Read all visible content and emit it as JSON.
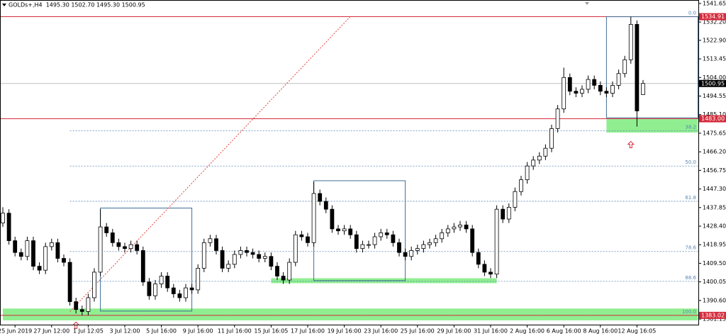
{
  "chart_data": {
    "type": "candlestick",
    "legend_text": "GOLDs+,H4  1495.30 1502.70 1495.30 1500.95",
    "categories": [
      null,
      null,
      "25 Jun 2019",
      null,
      null,
      null,
      null,
      null,
      "27 Jun 12:00",
      null,
      null,
      null,
      null,
      null,
      "1 Jul 12:05",
      null,
      null,
      null,
      null,
      null,
      "3 Jul 12:00",
      null,
      null,
      null,
      null,
      null,
      "5 Jul 16:00",
      null,
      null,
      null,
      null,
      null,
      "9 Jul 16:00",
      null,
      null,
      null,
      null,
      null,
      "11 Jul 16:00",
      null,
      null,
      null,
      null,
      null,
      "15 Jul 16:05",
      null,
      null,
      null,
      null,
      null,
      "17 Jul 16:00",
      null,
      null,
      null,
      null,
      null,
      "19 Jul 16:00",
      null,
      null,
      null,
      null,
      null,
      "23 Jul 16:00",
      null,
      null,
      null,
      null,
      null,
      "25 Jul 16:00",
      null,
      null,
      null,
      null,
      null,
      "29 Jul 16:00",
      null,
      null,
      null,
      null,
      null,
      "31 Jul 16:00",
      null,
      null,
      null,
      null,
      null,
      "2 Aug 16:00",
      null,
      null,
      null,
      null,
      null,
      "6 Aug 16:00",
      null,
      null,
      null,
      null,
      null,
      "8 Aug 16:00",
      null,
      null,
      null,
      null,
      null,
      "12 Aug 16:05",
      null
    ],
    "open": [
      1430,
      1435,
      1421,
      1415,
      1413,
      1421,
      1408,
      1406,
      1418,
      1420,
      1412,
      1410,
      1390,
      1386,
      1385,
      1392,
      1405,
      1428,
      1425,
      1420,
      1418,
      1417,
      1419,
      1416,
      1400,
      1393,
      1399,
      1403,
      1397,
      1394,
      1392,
      1397,
      1396,
      1407,
      1420,
      1422,
      1416,
      1407,
      1409,
      1414,
      1416,
      1415,
      1414,
      1412,
      1413,
      1408,
      1403,
      1401,
      1410,
      1424,
      1423,
      1420,
      1445,
      1441,
      1437,
      1427,
      1426,
      1427,
      1424,
      1417,
      1419,
      1419,
      1423,
      1425,
      1424,
      1420,
      1415,
      1413,
      1416,
      1417,
      1419,
      1420,
      1422,
      1425,
      1427,
      1428,
      1429,
      1427,
      1415,
      1409,
      1405,
      1404,
      1437,
      1432,
      1438,
      1446,
      1452,
      1459,
      1462,
      1464,
      1468,
      1478,
      1488,
      1504,
      1497,
      1496,
      1498,
      1503,
      1500,
      1497,
      1496,
      1500,
      1506,
      1513,
      1531,
      1495.3
    ],
    "high": [
      1438,
      1437,
      1423,
      1417,
      1423,
      1423,
      1410,
      1420,
      1422,
      1422,
      1414,
      1412,
      1392,
      1388,
      1394,
      1407,
      1437,
      1430,
      1427,
      1422,
      1420,
      1421,
      1421,
      1418,
      1402,
      1401,
      1405,
      1405,
      1399,
      1396,
      1399,
      1399,
      1409,
      1422,
      1424,
      1424,
      1418,
      1411,
      1416,
      1418,
      1418,
      1417,
      1416,
      1415,
      1415,
      1410,
      1405,
      1412,
      1426,
      1426,
      1425,
      1451,
      1447,
      1443,
      1439,
      1429,
      1429,
      1429,
      1426,
      1421,
      1421,
      1425,
      1427,
      1427,
      1426,
      1422,
      1417,
      1418,
      1419,
      1421,
      1422,
      1424,
      1427,
      1429,
      1430,
      1431,
      1431,
      1429,
      1417,
      1411,
      1407,
      1439,
      1439,
      1440,
      1448,
      1454,
      1461,
      1464,
      1466,
      1470,
      1480,
      1490,
      1509,
      1506,
      1499,
      1500,
      1505,
      1505,
      1502,
      1499,
      1502,
      1508,
      1515,
      1534.9,
      1533,
      1502.7
    ],
    "low": [
      1428,
      1419,
      1413,
      1411,
      1411,
      1406,
      1404,
      1404,
      1416,
      1410,
      1408,
      1388,
      1384,
      1383,
      1383,
      1390,
      1403,
      1423,
      1418,
      1416,
      1415,
      1415,
      1414,
      1398,
      1391,
      1391,
      1397,
      1395,
      1392,
      1390,
      1390,
      1394,
      1394,
      1405,
      1418,
      1414,
      1405,
      1405,
      1407,
      1412,
      1413,
      1412,
      1410,
      1410,
      1406,
      1401,
      1399,
      1399,
      1408,
      1421,
      1418,
      1418,
      1439,
      1435,
      1425,
      1424,
      1424,
      1422,
      1415,
      1415,
      1417,
      1417,
      1421,
      1422,
      1418,
      1413,
      1411,
      1411,
      1414,
      1415,
      1417,
      1418,
      1420,
      1423,
      1425,
      1426,
      1425,
      1413,
      1407,
      1403,
      1402,
      1402,
      1430,
      1430,
      1436,
      1444,
      1450,
      1457,
      1460,
      1462,
      1466,
      1476,
      1486,
      1495,
      1494,
      1494,
      1496,
      1498,
      1495,
      1494,
      1494,
      1498,
      1504,
      1511,
      1479,
      1495.3
    ],
    "close": [
      1435,
      1421,
      1415,
      1413,
      1421,
      1408,
      1406,
      1418,
      1420,
      1412,
      1410,
      1390,
      1386,
      1385,
      1392,
      1405,
      1428,
      1425,
      1420,
      1418,
      1417,
      1419,
      1416,
      1400,
      1393,
      1399,
      1403,
      1397,
      1394,
      1392,
      1397,
      1396,
      1407,
      1420,
      1422,
      1416,
      1407,
      1409,
      1414,
      1416,
      1415,
      1414,
      1412,
      1413,
      1408,
      1403,
      1401,
      1410,
      1424,
      1423,
      1420,
      1445,
      1441,
      1437,
      1427,
      1426,
      1427,
      1424,
      1417,
      1419,
      1419,
      1423,
      1425,
      1424,
      1420,
      1415,
      1413,
      1416,
      1417,
      1419,
      1420,
      1422,
      1425,
      1427,
      1428,
      1429,
      1427,
      1415,
      1409,
      1405,
      1404,
      1437,
      1432,
      1438,
      1446,
      1452,
      1459,
      1462,
      1464,
      1468,
      1478,
      1488,
      1504,
      1497,
      1496,
      1498,
      1503,
      1500,
      1497,
      1496,
      1500,
      1506,
      1513,
      1531,
      1487,
      1500.95
    ],
    "colors": {
      "up": "#ffffff",
      "down": "#000000",
      "outline": "#000000"
    },
    "ylim": [
      1378.3,
      1543.4
    ],
    "yticks": [
      1541.65,
      {
        "value": 1532.2,
        "label": "1532.20"
      },
      {
        "value": 1522.9,
        "label": "1522.90"
      },
      1513.45,
      {
        "value": 1504,
        "label": "1504.00"
      },
      1494.55,
      {
        "value": 1485.1,
        "label": "1485.10"
      },
      1475.65,
      {
        "value": 1466.2,
        "label": "1466.20"
      },
      1456.75,
      {
        "value": 1447.3,
        "label": "1447.30"
      },
      1437.85,
      {
        "value": 1428.4,
        "label": "1428.40"
      },
      1418.95,
      {
        "value": 1409.5,
        "label": "1409.50"
      },
      1400.05,
      {
        "value": 1390.6,
        "label": "1390.60"
      },
      1381.15
    ],
    "price_lines": [
      {
        "value": 1534.91,
        "color": "#d42c3c",
        "label_color": "#d42c3c"
      },
      {
        "value": 1483,
        "label": "1483.00",
        "color": "#d42c3c",
        "label_color": "#d42c3c"
      },
      {
        "value": 1383.02,
        "color": "#d42c3c",
        "label_color": "#d42c3c"
      },
      {
        "value": 1500.95,
        "color": "#c0c0c0",
        "label_color": "#000000"
      }
    ],
    "fib": {
      "start": 11,
      "high": 1534.91,
      "low": 1383.02,
      "color": "#5b87b8",
      "levels": [
        {
          "value": 0,
          "label": "0.0"
        },
        38.2,
        {
          "value": 50,
          "label": "50.0"
        },
        61.8,
        78.6,
        88.6,
        {
          "value": 100,
          "label": "100.0"
        }
      ]
    },
    "zones": [
      {
        "from": 0,
        "to": 114,
        "top": 1386.5,
        "bottom": 1380.5
      },
      {
        "from": 44,
        "to": 81,
        "top": 1401.9,
        "bottom": 1399.4
      },
      {
        "from": 99,
        "to": 114,
        "top": 1482.8,
        "bottom": 1476
      }
    ],
    "zone_color": "#90ee90",
    "boxes": [
      {
        "from": 16,
        "to": 31,
        "top": 1437.6,
        "bottom": 1385.2
      },
      {
        "from": 51,
        "to": 66,
        "top": 1451.5,
        "bottom": 1400.7
      },
      {
        "from": 99,
        "to": 114,
        "top": 1534.9,
        "bottom": 1483.5
      }
    ],
    "box_color": "#3f6e96",
    "trendline": {
      "from": 11,
      "to": 57,
      "start": 1385,
      "end": 1535,
      "color": "#e0453a"
    },
    "arrows": [
      {
        "index": 12,
        "price": 1379.6
      },
      {
        "index": 103,
        "price": 1471.5
      }
    ],
    "arrow_color": "#d42c3c"
  }
}
